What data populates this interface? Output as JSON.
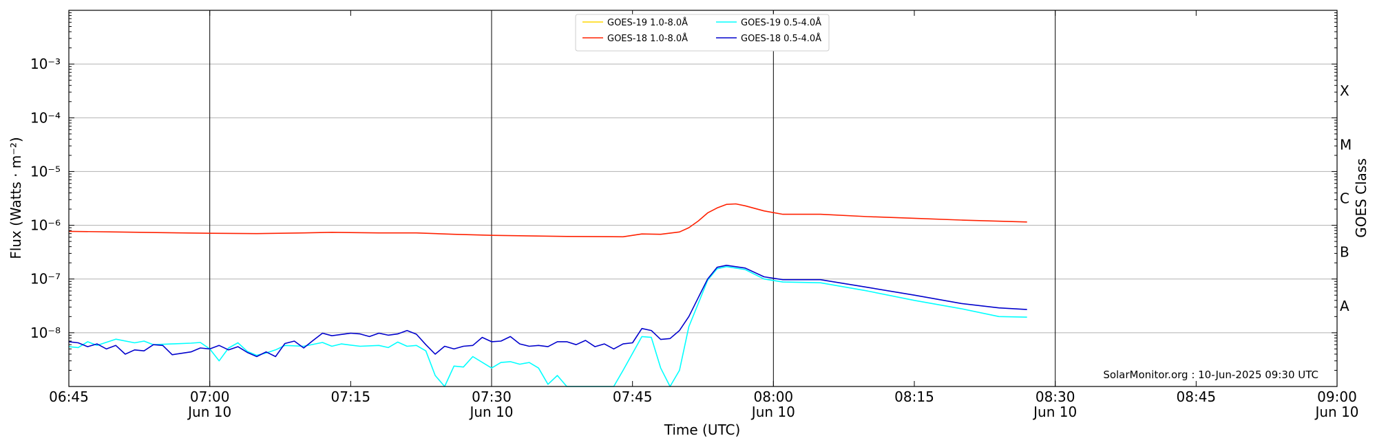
{
  "chart_data": {
    "type": "line",
    "title": "",
    "xlabel": "Time (UTC)",
    "ylabel": "Flux (Watts · m⁻²)",
    "y2label": "GOES Class",
    "yscale": "log",
    "ylim": [
      1e-09,
      0.01
    ],
    "xlim": [
      "2025-06-10T06:45:00",
      "2025-06-10T09:00:00"
    ],
    "grid": {
      "horizontal": true,
      "vertical_lines_at_day_ticks": true
    },
    "legend_position": "top-center",
    "annotation": "SolarMonitor.org : 10-Jun-2025 09:30 UTC",
    "x_ticks": [
      {
        "time": "2025-06-10T06:45:00",
        "label": "06:45",
        "sublabel": ""
      },
      {
        "time": "2025-06-10T07:00:00",
        "label": "07:00",
        "sublabel": "Jun 10"
      },
      {
        "time": "2025-06-10T07:15:00",
        "label": "07:15",
        "sublabel": ""
      },
      {
        "time": "2025-06-10T07:30:00",
        "label": "07:30",
        "sublabel": "Jun 10"
      },
      {
        "time": "2025-06-10T07:45:00",
        "label": "07:45",
        "sublabel": ""
      },
      {
        "time": "2025-06-10T08:00:00",
        "label": "08:00",
        "sublabel": "Jun 10"
      },
      {
        "time": "2025-06-10T08:15:00",
        "label": "08:15",
        "sublabel": ""
      },
      {
        "time": "2025-06-10T08:30:00",
        "label": "08:30",
        "sublabel": "Jun 10"
      },
      {
        "time": "2025-06-10T08:45:00",
        "label": "08:45",
        "sublabel": ""
      },
      {
        "time": "2025-06-10T09:00:00",
        "label": "09:00",
        "sublabel": "Jun 10"
      }
    ],
    "y_ticks": [
      {
        "value": 1e-08,
        "label": "10⁻⁸"
      },
      {
        "value": 1e-07,
        "label": "10⁻⁷"
      },
      {
        "value": 1e-06,
        "label": "10⁻⁶"
      },
      {
        "value": 1e-05,
        "label": "10⁻⁵"
      },
      {
        "value": 0.0001,
        "label": "10⁻⁴"
      },
      {
        "value": 0.001,
        "label": "10⁻³"
      }
    ],
    "goes_classes": [
      {
        "label": "A",
        "value": 3.162e-08
      },
      {
        "label": "B",
        "value": 3.162e-07
      },
      {
        "label": "C",
        "value": 3.162e-06
      },
      {
        "label": "M",
        "value": 3.162e-05
      },
      {
        "label": "X",
        "value": 0.0003162
      }
    ],
    "series": [
      {
        "name": "GOES-19 1.0-8.0Å",
        "color": "#ffd700",
        "points": []
      },
      {
        "name": "GOES-18 1.0-8.0Å",
        "color": "#ff2000",
        "points": [
          [
            "2025-06-10T06:45:00",
            7.7e-07
          ],
          [
            "2025-06-10T06:50:00",
            7.5e-07
          ],
          [
            "2025-06-10T06:55:00",
            7.3e-07
          ],
          [
            "2025-06-10T07:00:00",
            7.1e-07
          ],
          [
            "2025-06-10T07:05:00",
            7e-07
          ],
          [
            "2025-06-10T07:10:00",
            7.2e-07
          ],
          [
            "2025-06-10T07:13:00",
            7.4e-07
          ],
          [
            "2025-06-10T07:18:00",
            7.2e-07
          ],
          [
            "2025-06-10T07:22:00",
            7.2e-07
          ],
          [
            "2025-06-10T07:26:00",
            6.8e-07
          ],
          [
            "2025-06-10T07:30:00",
            6.5e-07
          ],
          [
            "2025-06-10T07:38:00",
            6.2e-07
          ],
          [
            "2025-06-10T07:44:00",
            6.1e-07
          ],
          [
            "2025-06-10T07:46:00",
            6.9e-07
          ],
          [
            "2025-06-10T07:48:00",
            6.8e-07
          ],
          [
            "2025-06-10T07:50:00",
            7.5e-07
          ],
          [
            "2025-06-10T07:51:00",
            9e-07
          ],
          [
            "2025-06-10T07:52:00",
            1.2e-06
          ],
          [
            "2025-06-10T07:53:00",
            1.7e-06
          ],
          [
            "2025-06-10T07:54:00",
            2.1e-06
          ],
          [
            "2025-06-10T07:55:00",
            2.45e-06
          ],
          [
            "2025-06-10T07:56:00",
            2.5e-06
          ],
          [
            "2025-06-10T07:57:00",
            2.3e-06
          ],
          [
            "2025-06-10T07:59:00",
            1.85e-06
          ],
          [
            "2025-06-10T08:01:00",
            1.6e-06
          ],
          [
            "2025-06-10T08:05:00",
            1.6e-06
          ],
          [
            "2025-06-10T08:10:00",
            1.45e-06
          ],
          [
            "2025-06-10T08:15:00",
            1.35e-06
          ],
          [
            "2025-06-10T08:20:00",
            1.25e-06
          ],
          [
            "2025-06-10T08:27:00",
            1.15e-06
          ]
        ]
      },
      {
        "name": "GOES-19 0.5-4.0Å",
        "color": "#00ffff",
        "points": [
          [
            "2025-06-10T06:45:00",
            5.5e-09
          ],
          [
            "2025-06-10T06:46:00",
            5.3e-09
          ],
          [
            "2025-06-10T06:47:00",
            6.8e-09
          ],
          [
            "2025-06-10T06:48:00",
            5.8e-09
          ],
          [
            "2025-06-10T06:50:00",
            7.6e-09
          ],
          [
            "2025-06-10T06:52:00",
            6.5e-09
          ],
          [
            "2025-06-10T06:53:00",
            7e-09
          ],
          [
            "2025-06-10T06:54:00",
            6e-09
          ],
          [
            "2025-06-10T06:56:00",
            6.2e-09
          ],
          [
            "2025-06-10T06:58:00",
            6.4e-09
          ],
          [
            "2025-06-10T06:59:00",
            6.6e-09
          ],
          [
            "2025-06-10T07:00:00",
            5e-09
          ],
          [
            "2025-06-10T07:01:00",
            3e-09
          ],
          [
            "2025-06-10T07:02:00",
            5.2e-09
          ],
          [
            "2025-06-10T07:03:00",
            6.5e-09
          ],
          [
            "2025-06-10T07:04:00",
            4.5e-09
          ],
          [
            "2025-06-10T07:05:00",
            3.8e-09
          ],
          [
            "2025-06-10T07:06:00",
            4.2e-09
          ],
          [
            "2025-06-10T07:07:00",
            4.8e-09
          ],
          [
            "2025-06-10T07:08:00",
            5.8e-09
          ],
          [
            "2025-06-10T07:10:00",
            5.6e-09
          ],
          [
            "2025-06-10T07:12:00",
            6.6e-09
          ],
          [
            "2025-06-10T07:13:00",
            5.6e-09
          ],
          [
            "2025-06-10T07:14:00",
            6.2e-09
          ],
          [
            "2025-06-10T07:16:00",
            5.6e-09
          ],
          [
            "2025-06-10T07:18:00",
            5.8e-09
          ],
          [
            "2025-06-10T07:19:00",
            5.3e-09
          ],
          [
            "2025-06-10T07:20:00",
            6.7e-09
          ],
          [
            "2025-06-10T07:21:00",
            5.6e-09
          ],
          [
            "2025-06-10T07:22:00",
            5.8e-09
          ],
          [
            "2025-06-10T07:23:00",
            4.6e-09
          ],
          [
            "2025-06-10T07:24:00",
            1.6e-09
          ],
          [
            "2025-06-10T07:25:00",
            1e-09
          ],
          [
            "2025-06-10T07:26:00",
            2.4e-09
          ],
          [
            "2025-06-10T07:27:00",
            2.3e-09
          ],
          [
            "2025-06-10T07:28:00",
            3.6e-09
          ],
          [
            "2025-06-10T07:30:00",
            2.2e-09
          ],
          [
            "2025-06-10T07:31:00",
            2.8e-09
          ],
          [
            "2025-06-10T07:32:00",
            2.9e-09
          ],
          [
            "2025-06-10T07:33:00",
            2.6e-09
          ],
          [
            "2025-06-10T07:34:00",
            2.8e-09
          ],
          [
            "2025-06-10T07:35:00",
            2.2e-09
          ],
          [
            "2025-06-10T07:36:00",
            1.1e-09
          ],
          [
            "2025-06-10T07:37:00",
            1.6e-09
          ],
          [
            "2025-06-10T07:38:00",
            1e-09
          ],
          [
            "2025-06-10T07:43:00",
            1e-09
          ],
          [
            "2025-06-10T07:44:00",
            2e-09
          ],
          [
            "2025-06-10T07:46:00",
            8.5e-09
          ],
          [
            "2025-06-10T07:47:00",
            8.2e-09
          ],
          [
            "2025-06-10T07:48:00",
            2.2e-09
          ],
          [
            "2025-06-10T07:49:00",
            1e-09
          ],
          [
            "2025-06-10T07:50:00",
            2e-09
          ],
          [
            "2025-06-10T07:51:00",
            1.3e-08
          ],
          [
            "2025-06-10T07:52:00",
            3.5e-08
          ],
          [
            "2025-06-10T07:53:00",
            9.5e-08
          ],
          [
            "2025-06-10T07:54:00",
            1.55e-07
          ],
          [
            "2025-06-10T07:55:00",
            1.7e-07
          ],
          [
            "2025-06-10T07:57:00",
            1.5e-07
          ],
          [
            "2025-06-10T07:59:00",
            1e-07
          ],
          [
            "2025-06-10T08:01:00",
            8.8e-08
          ],
          [
            "2025-06-10T08:05:00",
            8.5e-08
          ],
          [
            "2025-06-10T08:10:00",
            6e-08
          ],
          [
            "2025-06-10T08:15:00",
            4e-08
          ],
          [
            "2025-06-10T08:20:00",
            2.8e-08
          ],
          [
            "2025-06-10T08:24:00",
            2e-08
          ],
          [
            "2025-06-10T08:27:00",
            1.95e-08
          ]
        ]
      },
      {
        "name": "GOES-18 0.5-4.0Å",
        "color": "#0000cc",
        "points": [
          [
            "2025-06-10T06:45:00",
            6.8e-09
          ],
          [
            "2025-06-10T06:46:00",
            6.5e-09
          ],
          [
            "2025-06-10T06:47:00",
            5.5e-09
          ],
          [
            "2025-06-10T06:48:00",
            6.2e-09
          ],
          [
            "2025-06-10T06:49:00",
            5e-09
          ],
          [
            "2025-06-10T06:50:00",
            5.8e-09
          ],
          [
            "2025-06-10T06:51:00",
            4e-09
          ],
          [
            "2025-06-10T06:52:00",
            4.8e-09
          ],
          [
            "2025-06-10T06:53:00",
            4.6e-09
          ],
          [
            "2025-06-10T06:54:00",
            6e-09
          ],
          [
            "2025-06-10T06:55:00",
            5.8e-09
          ],
          [
            "2025-06-10T06:56:00",
            3.9e-09
          ],
          [
            "2025-06-10T06:58:00",
            4.4e-09
          ],
          [
            "2025-06-10T06:59:00",
            5.2e-09
          ],
          [
            "2025-06-10T07:00:00",
            5e-09
          ],
          [
            "2025-06-10T07:01:00",
            5.8e-09
          ],
          [
            "2025-06-10T07:02:00",
            4.8e-09
          ],
          [
            "2025-06-10T07:03:00",
            5.5e-09
          ],
          [
            "2025-06-10T07:04:00",
            4.3e-09
          ],
          [
            "2025-06-10T07:05:00",
            3.6e-09
          ],
          [
            "2025-06-10T07:06:00",
            4.4e-09
          ],
          [
            "2025-06-10T07:07:00",
            3.6e-09
          ],
          [
            "2025-06-10T07:08:00",
            6.3e-09
          ],
          [
            "2025-06-10T07:09:00",
            7e-09
          ],
          [
            "2025-06-10T07:10:00",
            5.2e-09
          ],
          [
            "2025-06-10T07:11:00",
            7.2e-09
          ],
          [
            "2025-06-10T07:12:00",
            9.8e-09
          ],
          [
            "2025-06-10T07:13:00",
            8.8e-09
          ],
          [
            "2025-06-10T07:15:00",
            9.8e-09
          ],
          [
            "2025-06-10T07:16:00",
            9.5e-09
          ],
          [
            "2025-06-10T07:17:00",
            8.5e-09
          ],
          [
            "2025-06-10T07:18:00",
            9.8e-09
          ],
          [
            "2025-06-10T07:19:00",
            9e-09
          ],
          [
            "2025-06-10T07:20:00",
            9.5e-09
          ],
          [
            "2025-06-10T07:21:00",
            1.1e-08
          ],
          [
            "2025-06-10T07:22:00",
            9.4e-09
          ],
          [
            "2025-06-10T07:23:00",
            6e-09
          ],
          [
            "2025-06-10T07:24:00",
            4e-09
          ],
          [
            "2025-06-10T07:25:00",
            5.6e-09
          ],
          [
            "2025-06-10T07:26:00",
            5e-09
          ],
          [
            "2025-06-10T07:27:00",
            5.6e-09
          ],
          [
            "2025-06-10T07:28:00",
            5.8e-09
          ],
          [
            "2025-06-10T07:29:00",
            8.2e-09
          ],
          [
            "2025-06-10T07:30:00",
            6.8e-09
          ],
          [
            "2025-06-10T07:31:00",
            7e-09
          ],
          [
            "2025-06-10T07:32:00",
            8.5e-09
          ],
          [
            "2025-06-10T07:33:00",
            6.2e-09
          ],
          [
            "2025-06-10T07:34:00",
            5.6e-09
          ],
          [
            "2025-06-10T07:35:00",
            5.8e-09
          ],
          [
            "2025-06-10T07:36:00",
            5.5e-09
          ],
          [
            "2025-06-10T07:37:00",
            6.8e-09
          ],
          [
            "2025-06-10T07:38:00",
            6.8e-09
          ],
          [
            "2025-06-10T07:39:00",
            6e-09
          ],
          [
            "2025-06-10T07:40:00",
            7.2e-09
          ],
          [
            "2025-06-10T07:41:00",
            5.5e-09
          ],
          [
            "2025-06-10T07:42:00",
            6.2e-09
          ],
          [
            "2025-06-10T07:43:00",
            5e-09
          ],
          [
            "2025-06-10T07:44:00",
            6.2e-09
          ],
          [
            "2025-06-10T07:45:00",
            6.5e-09
          ],
          [
            "2025-06-10T07:46:00",
            1.2e-08
          ],
          [
            "2025-06-10T07:47:00",
            1.1e-08
          ],
          [
            "2025-06-10T07:48:00",
            7.5e-09
          ],
          [
            "2025-06-10T07:49:00",
            7.8e-09
          ],
          [
            "2025-06-10T07:50:00",
            1.1e-08
          ],
          [
            "2025-06-10T07:51:00",
            2e-08
          ],
          [
            "2025-06-10T07:52:00",
            4.5e-08
          ],
          [
            "2025-06-10T07:53:00",
            1e-07
          ],
          [
            "2025-06-10T07:54:00",
            1.65e-07
          ],
          [
            "2025-06-10T07:55:00",
            1.8e-07
          ],
          [
            "2025-06-10T07:57:00",
            1.6e-07
          ],
          [
            "2025-06-10T07:59:00",
            1.1e-07
          ],
          [
            "2025-06-10T08:01:00",
            9.7e-08
          ],
          [
            "2025-06-10T08:05:00",
            9.7e-08
          ],
          [
            "2025-06-10T08:10:00",
            7e-08
          ],
          [
            "2025-06-10T08:15:00",
            5e-08
          ],
          [
            "2025-06-10T08:20:00",
            3.5e-08
          ],
          [
            "2025-06-10T08:24:00",
            2.9e-08
          ],
          [
            "2025-06-10T08:27:00",
            2.7e-08
          ]
        ]
      }
    ]
  }
}
